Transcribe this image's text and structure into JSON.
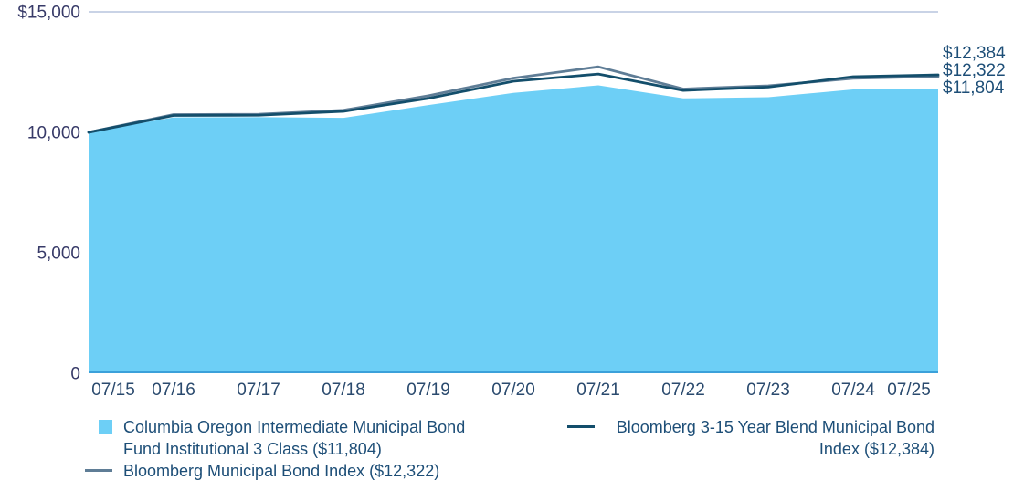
{
  "colors": {
    "fund_area": "#6DCFF6",
    "bloomberg_muni_line": "#5F7D96",
    "blend_line": "#134E6B",
    "axis_line": "#3BA1DA",
    "gridline": "#C9D3E6",
    "y_axis_text": "#373A68",
    "x_axis_text": "#2A4A6E",
    "end_label_text": "#1D4E77",
    "legend_text": "#1D4E77"
  },
  "chart_data": {
    "type": "area",
    "title": "",
    "x": [
      "07/15",
      "07/16",
      "07/17",
      "07/18",
      "07/19",
      "07/20",
      "07/21",
      "07/22",
      "07/23",
      "07/24",
      "07/25"
    ],
    "series": [
      {
        "name": "Columbia Oregon Intermediate Municipal Bond Fund Institutional 3 Class",
        "style": "area",
        "color": "#6DCFF6",
        "final_value": 11804,
        "values": [
          10000,
          10620,
          10630,
          10600,
          11130,
          11640,
          11950,
          11410,
          11460,
          11780,
          11804
        ]
      },
      {
        "name": "Bloomberg Municipal Bond Index",
        "style": "line",
        "color": "#5F7D96",
        "final_value": 12322,
        "values": [
          10000,
          10740,
          10750,
          10920,
          11520,
          12250,
          12720,
          11800,
          11930,
          12240,
          12322
        ]
      },
      {
        "name": "Bloomberg 3-15 Year Blend Municipal Bond Index",
        "style": "line",
        "color": "#134E6B",
        "final_value": 12384,
        "values": [
          10000,
          10700,
          10710,
          10870,
          11410,
          12120,
          12420,
          11740,
          11880,
          12310,
          12384
        ]
      }
    ],
    "ylim": [
      0,
      15000
    ],
    "yticks": [
      {
        "value": 15000,
        "label": "$15,000",
        "gridline": true
      },
      {
        "value": 10000,
        "label": "10,000",
        "gridline": false
      },
      {
        "value": 5000,
        "label": "5,000",
        "gridline": false
      },
      {
        "value": 0,
        "label": "0",
        "gridline": false
      }
    ],
    "end_labels": [
      "$12,384",
      "$12,322",
      "$11,804"
    ],
    "grid": "top-horizontal-only",
    "legend_position": "bottom"
  },
  "legend": {
    "items": [
      {
        "label": "Columbia Oregon Intermediate Municipal Bond Fund Institutional 3 Class ($11,804)",
        "swatch": "square",
        "color": "#6DCFF6"
      },
      {
        "label": "Bloomberg Municipal Bond Index ($12,322)",
        "swatch": "line",
        "color": "#5F7D96"
      },
      {
        "label": "Bloomberg 3-15 Year Blend Municipal Bond Index ($12,384)",
        "swatch": "line",
        "color": "#134E6B"
      }
    ]
  }
}
